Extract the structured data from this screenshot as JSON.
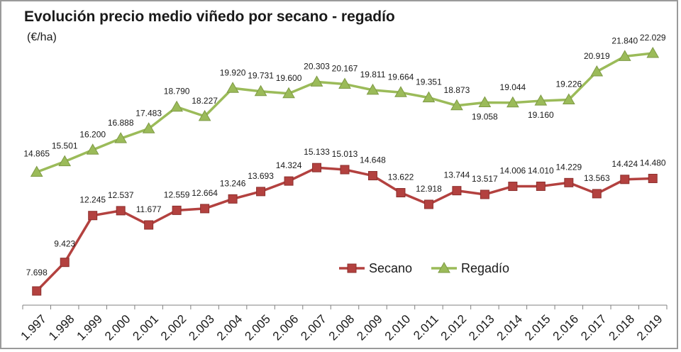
{
  "chart_data": {
    "type": "line",
    "title": "Evolución precio medio viñedo por secano - regadío",
    "subtitle": "(€/ha)",
    "categories": [
      "1.997",
      "1.998",
      "1.999",
      "2.000",
      "2.001",
      "2.002",
      "2.003",
      "2.004",
      "2.005",
      "2.006",
      "2.007",
      "2.008",
      "2.009",
      "2.010",
      "2.011",
      "2.012",
      "2.013",
      "2.014",
      "2.015",
      "2.016",
      "2.017",
      "2.018",
      "2.019"
    ],
    "series": [
      {
        "name": "Secano",
        "color": "#b3413f",
        "marker": "square",
        "values": [
          7698,
          9423,
          12245,
          12537,
          11677,
          12559,
          12664,
          13246,
          13693,
          14324,
          15133,
          15013,
          14648,
          13622,
          12918,
          13744,
          13517,
          14006,
          14010,
          14229,
          13563,
          14424,
          14480
        ],
        "labels": [
          "7.698",
          "9.423",
          "12.245",
          "12.537",
          "11.677",
          "12.559",
          "12.664",
          "13.246",
          "13.693",
          "14.324",
          "15.133",
          "15.013",
          "14.648",
          "13.622",
          "12.918",
          "13.744",
          "13.517",
          "14.006",
          "14.010",
          "14.229",
          "13.563",
          "14.424",
          "14.480"
        ]
      },
      {
        "name": "Regadío",
        "color": "#9bbb59",
        "marker": "triangle",
        "values": [
          14865,
          15501,
          16200,
          16888,
          17483,
          18790,
          18227,
          19920,
          19731,
          19600,
          20303,
          20167,
          19811,
          19664,
          19351,
          18873,
          19058,
          19044,
          19160,
          19226,
          20919,
          21840,
          22029
        ],
        "labels": [
          "14.865",
          "15.501",
          "16.200",
          "16.888",
          "17.483",
          "18.790",
          "18.227",
          "19.920",
          "19.731",
          "19.600",
          "20.303",
          "20.167",
          "19.811",
          "19.664",
          "19.351",
          "18.873",
          "19.058",
          "19.044",
          "19.160",
          "19.226",
          "20.919",
          "21.840",
          "22.029"
        ]
      }
    ],
    "ylim": [
      7000,
      23000
    ],
    "grid": false,
    "legend": "bottom-right, inside plot"
  }
}
